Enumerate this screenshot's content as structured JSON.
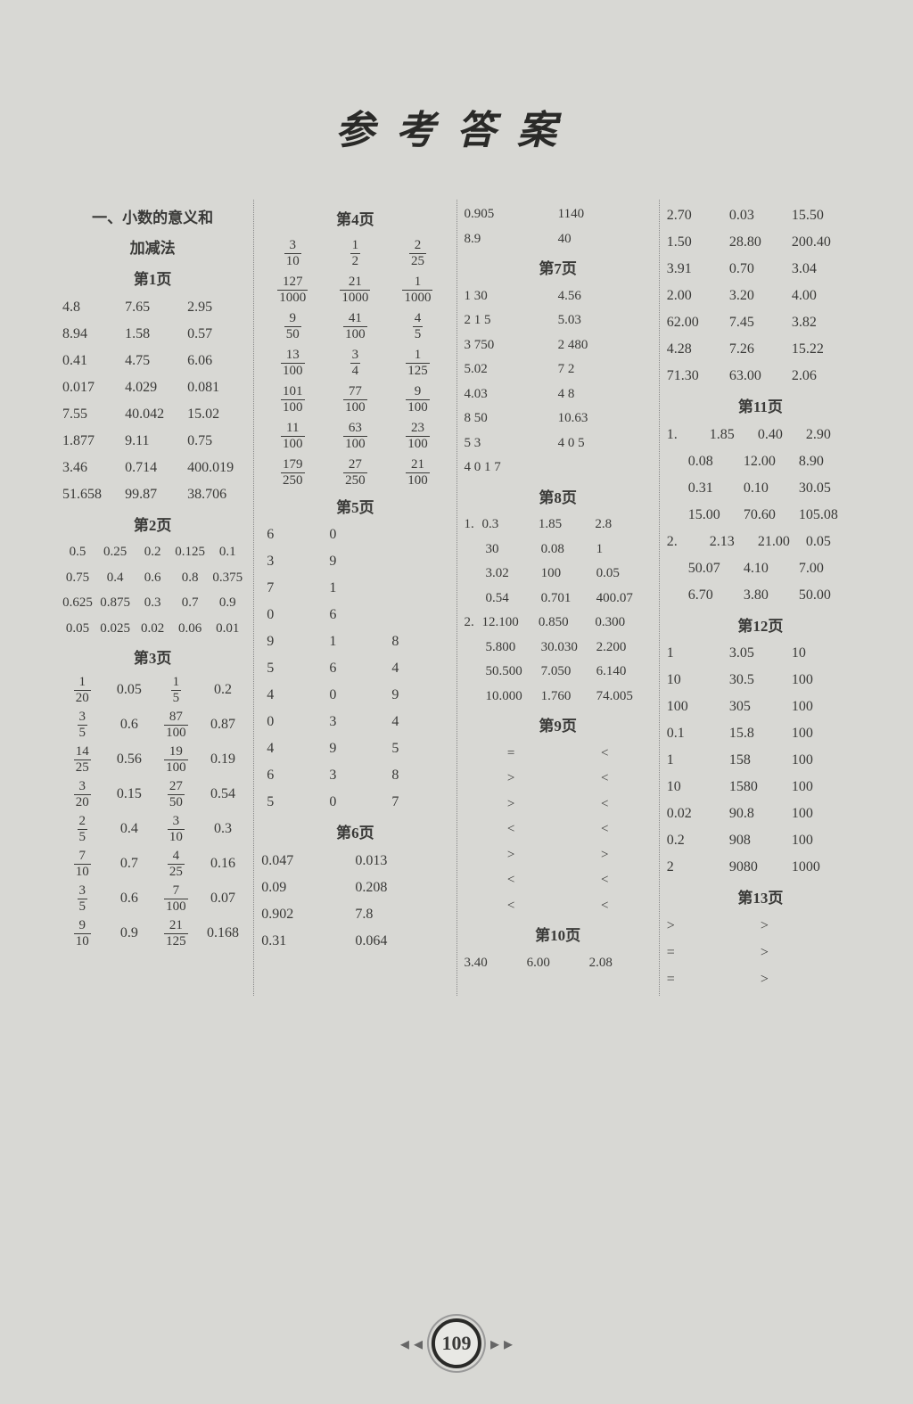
{
  "page_number": "109",
  "title": "参考答案",
  "col1": {
    "section_title": "一、小数的意义和",
    "section_sub": "加减法",
    "p1": {
      "head": "第1页",
      "rows": [
        [
          "4.8",
          "7.65",
          "2.95"
        ],
        [
          "8.94",
          "1.58",
          "0.57"
        ],
        [
          "0.41",
          "4.75",
          "6.06"
        ],
        [
          "0.017",
          "4.029",
          "0.081"
        ],
        [
          "7.55",
          "40.042",
          "15.02"
        ],
        [
          "1.877",
          "9.11",
          "0.75"
        ],
        [
          "3.46",
          "0.714",
          "400.019"
        ],
        [
          "51.658",
          "99.87",
          "38.706"
        ]
      ]
    },
    "p2": {
      "head": "第2页",
      "rows": [
        [
          "0.5",
          "0.25",
          "0.2",
          "0.125",
          "0.1"
        ],
        [
          "0.75",
          "0.4",
          "0.6",
          "0.8",
          "0.375"
        ],
        [
          "0.625",
          "0.875",
          "0.3",
          "0.7",
          "0.9"
        ],
        [
          "0.05",
          "0.025",
          "0.02",
          "0.06",
          "0.01"
        ]
      ]
    },
    "p3": {
      "head": "第3页",
      "rows": [
        [
          {
            "n": "1",
            "d": "20"
          },
          "0.05",
          {
            "n": "1",
            "d": "5"
          },
          "0.2"
        ],
        [
          {
            "n": "3",
            "d": "5"
          },
          "0.6",
          {
            "n": "87",
            "d": "100"
          },
          "0.87"
        ],
        [
          {
            "n": "14",
            "d": "25"
          },
          "0.56",
          {
            "n": "19",
            "d": "100"
          },
          "0.19"
        ],
        [
          {
            "n": "3",
            "d": "20"
          },
          "0.15",
          {
            "n": "27",
            "d": "50"
          },
          "0.54"
        ],
        [
          {
            "n": "2",
            "d": "5"
          },
          "0.4",
          {
            "n": "3",
            "d": "10"
          },
          "0.3"
        ],
        [
          {
            "n": "7",
            "d": "10"
          },
          "0.7",
          {
            "n": "4",
            "d": "25"
          },
          "0.16"
        ],
        [
          {
            "n": "3",
            "d": "5"
          },
          "0.6",
          {
            "n": "7",
            "d": "100"
          },
          "0.07"
        ],
        [
          {
            "n": "9",
            "d": "10"
          },
          "0.9",
          {
            "n": "21",
            "d": "125"
          },
          "0.168"
        ]
      ]
    }
  },
  "col2": {
    "p4": {
      "head": "第4页",
      "rows": [
        [
          {
            "n": "3",
            "d": "10"
          },
          {
            "n": "1",
            "d": "2"
          },
          {
            "n": "2",
            "d": "25"
          }
        ],
        [
          {
            "n": "127",
            "d": "1000"
          },
          {
            "n": "21",
            "d": "1000"
          },
          {
            "n": "1",
            "d": "1000"
          }
        ],
        [
          {
            "n": "9",
            "d": "50"
          },
          {
            "n": "41",
            "d": "100"
          },
          {
            "n": "4",
            "d": "5"
          }
        ],
        [
          {
            "n": "13",
            "d": "100"
          },
          {
            "n": "3",
            "d": "4"
          },
          {
            "n": "1",
            "d": "125"
          }
        ],
        [
          {
            "n": "101",
            "d": "100"
          },
          {
            "n": "77",
            "d": "100"
          },
          {
            "n": "9",
            "d": "100"
          }
        ],
        [
          {
            "n": "11",
            "d": "100"
          },
          {
            "n": "63",
            "d": "100"
          },
          {
            "n": "23",
            "d": "100"
          }
        ],
        [
          {
            "n": "179",
            "d": "250"
          },
          {
            "n": "27",
            "d": "250"
          },
          {
            "n": "21",
            "d": "100"
          }
        ]
      ]
    },
    "p5": {
      "head": "第5页",
      "rows": [
        [
          "6",
          "0",
          ""
        ],
        [
          "3",
          "9",
          ""
        ],
        [
          "7",
          "1",
          ""
        ],
        [
          "0",
          "6",
          ""
        ],
        [
          "9",
          "1",
          "8"
        ],
        [
          "5",
          "6",
          "4"
        ],
        [
          "4",
          "0",
          "9"
        ],
        [
          "0",
          "3",
          "4"
        ],
        [
          "4",
          "9",
          "5"
        ],
        [
          "6",
          "3",
          "8"
        ],
        [
          "5",
          "0",
          "7"
        ]
      ]
    },
    "p6": {
      "head": "第6页",
      "rows": [
        [
          "0.047",
          "0.013"
        ],
        [
          "0.09",
          "0.208"
        ],
        [
          "0.902",
          "7.8"
        ],
        [
          "0.31",
          "0.064"
        ]
      ]
    }
  },
  "col3": {
    "top_rows": [
      [
        "0.905",
        "1140"
      ],
      [
        "8.9",
        "40"
      ]
    ],
    "p7": {
      "head": "第7页",
      "rows": [
        [
          "1  30",
          "4.56"
        ],
        [
          "2  1  5",
          "5.03"
        ],
        [
          "3  750",
          "2  480"
        ],
        [
          "5.02",
          "7  2"
        ],
        [
          "4.03",
          "4  8"
        ],
        [
          "8  50",
          "10.63"
        ],
        [
          "5  3",
          "4  0  5"
        ],
        [
          "4  0  1  7",
          ""
        ]
      ]
    },
    "p8": {
      "head": "第8页",
      "q1": {
        "label": "1.",
        "rows": [
          [
            "0.3",
            "1.85",
            "2.8"
          ],
          [
            "30",
            "0.08",
            "1"
          ],
          [
            "3.02",
            "100",
            "0.05"
          ],
          [
            "0.54",
            "0.701",
            "400.07"
          ]
        ]
      },
      "q2": {
        "label": "2.",
        "rows": [
          [
            "12.100",
            "0.850",
            "0.300"
          ],
          [
            "5.800",
            "30.030",
            "2.200"
          ],
          [
            "50.500",
            "7.050",
            "6.140"
          ],
          [
            "10.000",
            "1.760",
            "74.005"
          ]
        ]
      }
    },
    "p9": {
      "head": "第9页",
      "rows": [
        [
          "=",
          "<"
        ],
        [
          ">",
          "<"
        ],
        [
          ">",
          "<"
        ],
        [
          "<",
          "<"
        ],
        [
          ">",
          ">"
        ],
        [
          "<",
          "<"
        ],
        [
          "<",
          "<"
        ]
      ]
    },
    "p10": {
      "head": "第10页",
      "rows": [
        [
          "3.40",
          "6.00",
          "2.08"
        ]
      ]
    }
  },
  "col4": {
    "top_rows": [
      [
        "2.70",
        "0.03",
        "15.50"
      ],
      [
        "1.50",
        "28.80",
        "200.40"
      ],
      [
        "3.91",
        "0.70",
        "3.04"
      ],
      [
        "2.00",
        "3.20",
        "4.00"
      ],
      [
        "62.00",
        "7.45",
        "3.82"
      ],
      [
        "4.28",
        "7.26",
        "15.22"
      ],
      [
        "71.30",
        "63.00",
        "2.06"
      ]
    ],
    "p11": {
      "head": "第11页",
      "q1": {
        "label": "1.",
        "rows": [
          [
            "1.85",
            "0.40",
            "2.90"
          ],
          [
            "0.08",
            "12.00",
            "8.90"
          ],
          [
            "0.31",
            "0.10",
            "30.05"
          ],
          [
            "15.00",
            "70.60",
            "105.08"
          ]
        ]
      },
      "q2": {
        "label": "2.",
        "rows": [
          [
            "2.13",
            "21.00",
            "0.05"
          ],
          [
            "50.07",
            "4.10",
            "7.00"
          ],
          [
            "6.70",
            "3.80",
            "50.00"
          ]
        ]
      }
    },
    "p12": {
      "head": "第12页",
      "rows": [
        [
          "1",
          "3.05",
          "10"
        ],
        [
          "10",
          "30.5",
          "100"
        ],
        [
          "100",
          "305",
          "100"
        ],
        [
          "0.1",
          "15.8",
          "100"
        ],
        [
          "1",
          "158",
          "100"
        ],
        [
          "10",
          "1580",
          "100"
        ],
        [
          "0.02",
          "90.8",
          "100"
        ],
        [
          "0.2",
          "908",
          "100"
        ],
        [
          "2",
          "9080",
          "1000"
        ]
      ]
    },
    "p13": {
      "head": "第13页",
      "rows": [
        [
          ">",
          ">"
        ],
        [
          "=",
          ">"
        ],
        [
          "=",
          ">"
        ]
      ]
    }
  },
  "colors": {
    "bg": "#d8d8d4",
    "text": "#3a3a38",
    "border": "#888888",
    "title": "#2a2a28"
  },
  "font_sizes": {
    "title": 44,
    "heading": 17,
    "body": 16,
    "small": 15
  }
}
